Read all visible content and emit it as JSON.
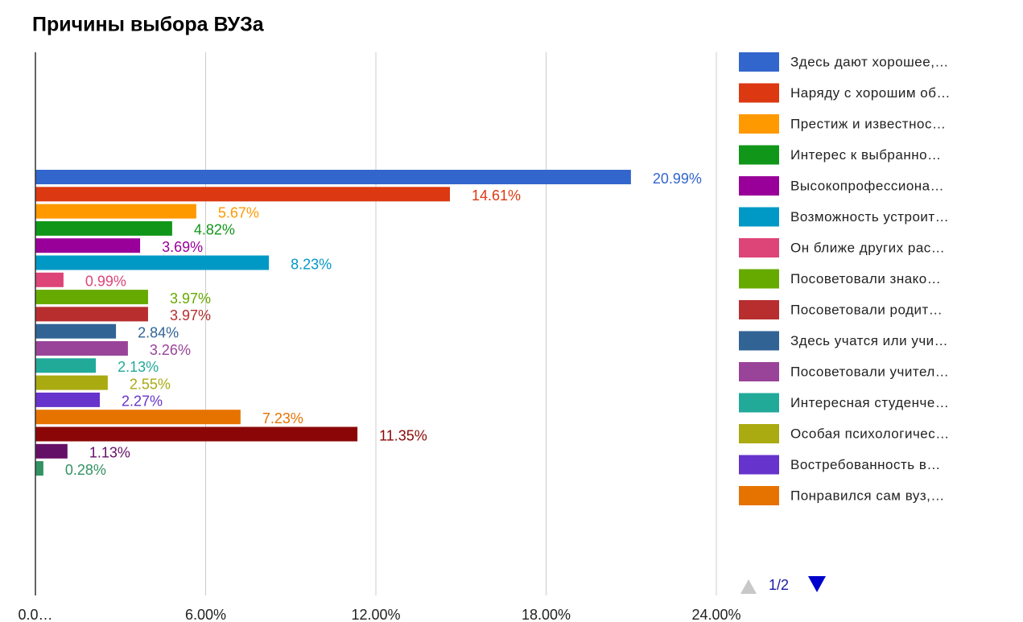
{
  "chart_data": {
    "type": "bar",
    "orientation": "horizontal",
    "title": "Причины выбора ВУЗа",
    "xlim": [
      0,
      24
    ],
    "xticks": [
      {
        "value": 0,
        "label": "0.0…"
      },
      {
        "value": 6,
        "label": "6.00%"
      },
      {
        "value": 12,
        "label": "12.00%"
      },
      {
        "value": 18,
        "label": "18.00%"
      },
      {
        "value": 24,
        "label": "24.00%"
      }
    ],
    "grid": true,
    "legend": "right",
    "legend_page": "1/2",
    "series": [
      {
        "name": "Здесь дают хорошее,…",
        "color": "#3366cc",
        "values": [
          20.99
        ],
        "value_labels": [
          "20.99%"
        ]
      },
      {
        "name": "Наряду с хорошим об…",
        "color": "#dc3912",
        "values": [
          14.61
        ],
        "value_labels": [
          "14.61%"
        ]
      },
      {
        "name": "Престиж и известнос…",
        "color": "#ff9900",
        "values": [
          5.67
        ],
        "value_labels": [
          "5.67%"
        ]
      },
      {
        "name": "Интерес к выбранно…",
        "color": "#109618",
        "values": [
          4.82
        ],
        "value_labels": [
          "4.82%"
        ]
      },
      {
        "name": "Высокопрофессиона…",
        "color": "#990099",
        "values": [
          3.69
        ],
        "value_labels": [
          "3.69%"
        ]
      },
      {
        "name": "Возможность устроит…",
        "color": "#0099c6",
        "values": [
          8.23
        ],
        "value_labels": [
          "8.23%"
        ]
      },
      {
        "name": "Он ближе других рас…",
        "color": "#dd4477",
        "values": [
          0.99
        ],
        "value_labels": [
          "0.99%"
        ]
      },
      {
        "name": "Посоветовали знако…",
        "color": "#66aa00",
        "values": [
          3.97
        ],
        "value_labels": [
          "3.97%"
        ]
      },
      {
        "name": "Посоветовали родит…",
        "color": "#b82e2e",
        "values": [
          3.97
        ],
        "value_labels": [
          "3.97%"
        ]
      },
      {
        "name": "Здесь учатся или учи…",
        "color": "#316395",
        "values": [
          2.84
        ],
        "value_labels": [
          "2.84%"
        ]
      },
      {
        "name": "Посоветовали учител…",
        "color": "#994499",
        "values": [
          3.26
        ],
        "value_labels": [
          "3.26%"
        ]
      },
      {
        "name": "Интересная студенче…",
        "color": "#22aa99",
        "values": [
          2.13
        ],
        "value_labels": [
          "2.13%"
        ]
      },
      {
        "name": "Особая психологичес…",
        "color": "#aaaa11",
        "values": [
          2.55
        ],
        "value_labels": [
          "2.55%"
        ]
      },
      {
        "name": "Востребованность в…",
        "color": "#6633cc",
        "values": [
          2.27
        ],
        "value_labels": [
          "2.27%"
        ]
      },
      {
        "name": "Понравился сам вуз,…",
        "color": "#e67300",
        "values": [
          7.23
        ],
        "value_labels": [
          "7.23%"
        ]
      },
      {
        "name": null,
        "color": "#8b0707",
        "values": [
          11.35
        ],
        "value_labels": [
          "11.35%"
        ]
      },
      {
        "name": null,
        "color": "#651067",
        "values": [
          1.13
        ],
        "value_labels": [
          "1.13%"
        ]
      },
      {
        "name": null,
        "color": "#329262",
        "values": [
          0.28
        ],
        "value_labels": [
          "0.28%"
        ]
      }
    ]
  }
}
